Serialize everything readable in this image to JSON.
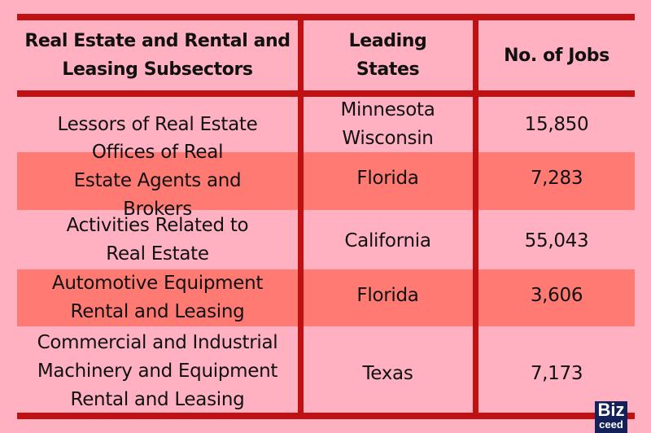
{
  "colors": {
    "background": "#FFB1C1",
    "rule": "#BF1111",
    "highlight_row": "#FF7A72",
    "logo_bg": "#14205A"
  },
  "table": {
    "headers": [
      "Real Estate and Rental and Leasing Subsectors",
      "Leading States",
      "No. of Jobs"
    ],
    "rows": [
      {
        "subsector": "Lessors of Real Estate",
        "states": "Minnesota Wisconsin",
        "jobs": "15,850"
      },
      {
        "subsector": "Offices of Real Estate Agents and Brokers",
        "states": "Florida",
        "jobs": "7,283"
      },
      {
        "subsector": "Activities Related to Real Estate",
        "states": "California",
        "jobs": "55,043"
      },
      {
        "subsector": "Automotive Equipment Rental and Leasing",
        "states": "Florida",
        "jobs": "3,606"
      },
      {
        "subsector": "Commercial and Industrial Machinery and Equipment Rental and Leasing",
        "states": "Texas",
        "jobs": "7,173"
      }
    ]
  },
  "logo": {
    "line1": "Biz",
    "line2": "ceed"
  }
}
